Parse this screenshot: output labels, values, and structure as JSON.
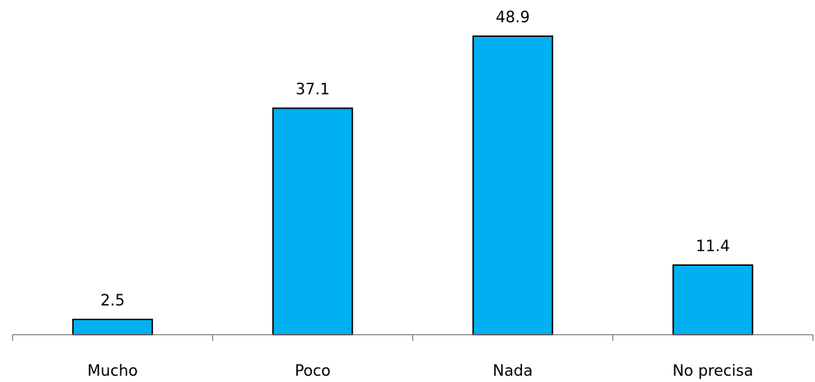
{
  "chart_data": {
    "type": "bar",
    "categories": [
      "Mucho",
      "Poco",
      "Nada",
      "No precisa"
    ],
    "values": [
      2.5,
      37.1,
      48.9,
      11.4
    ],
    "data_labels": [
      "2.5",
      "37.1",
      "48.9",
      "11.4"
    ],
    "title": "",
    "xlabel": "",
    "ylabel": "",
    "ylim": [
      0,
      48.9
    ],
    "grid": false,
    "legend": "none",
    "bar_color": "#00B0F0",
    "bar_edge_color": "#000000",
    "axis_color": "#808080"
  }
}
